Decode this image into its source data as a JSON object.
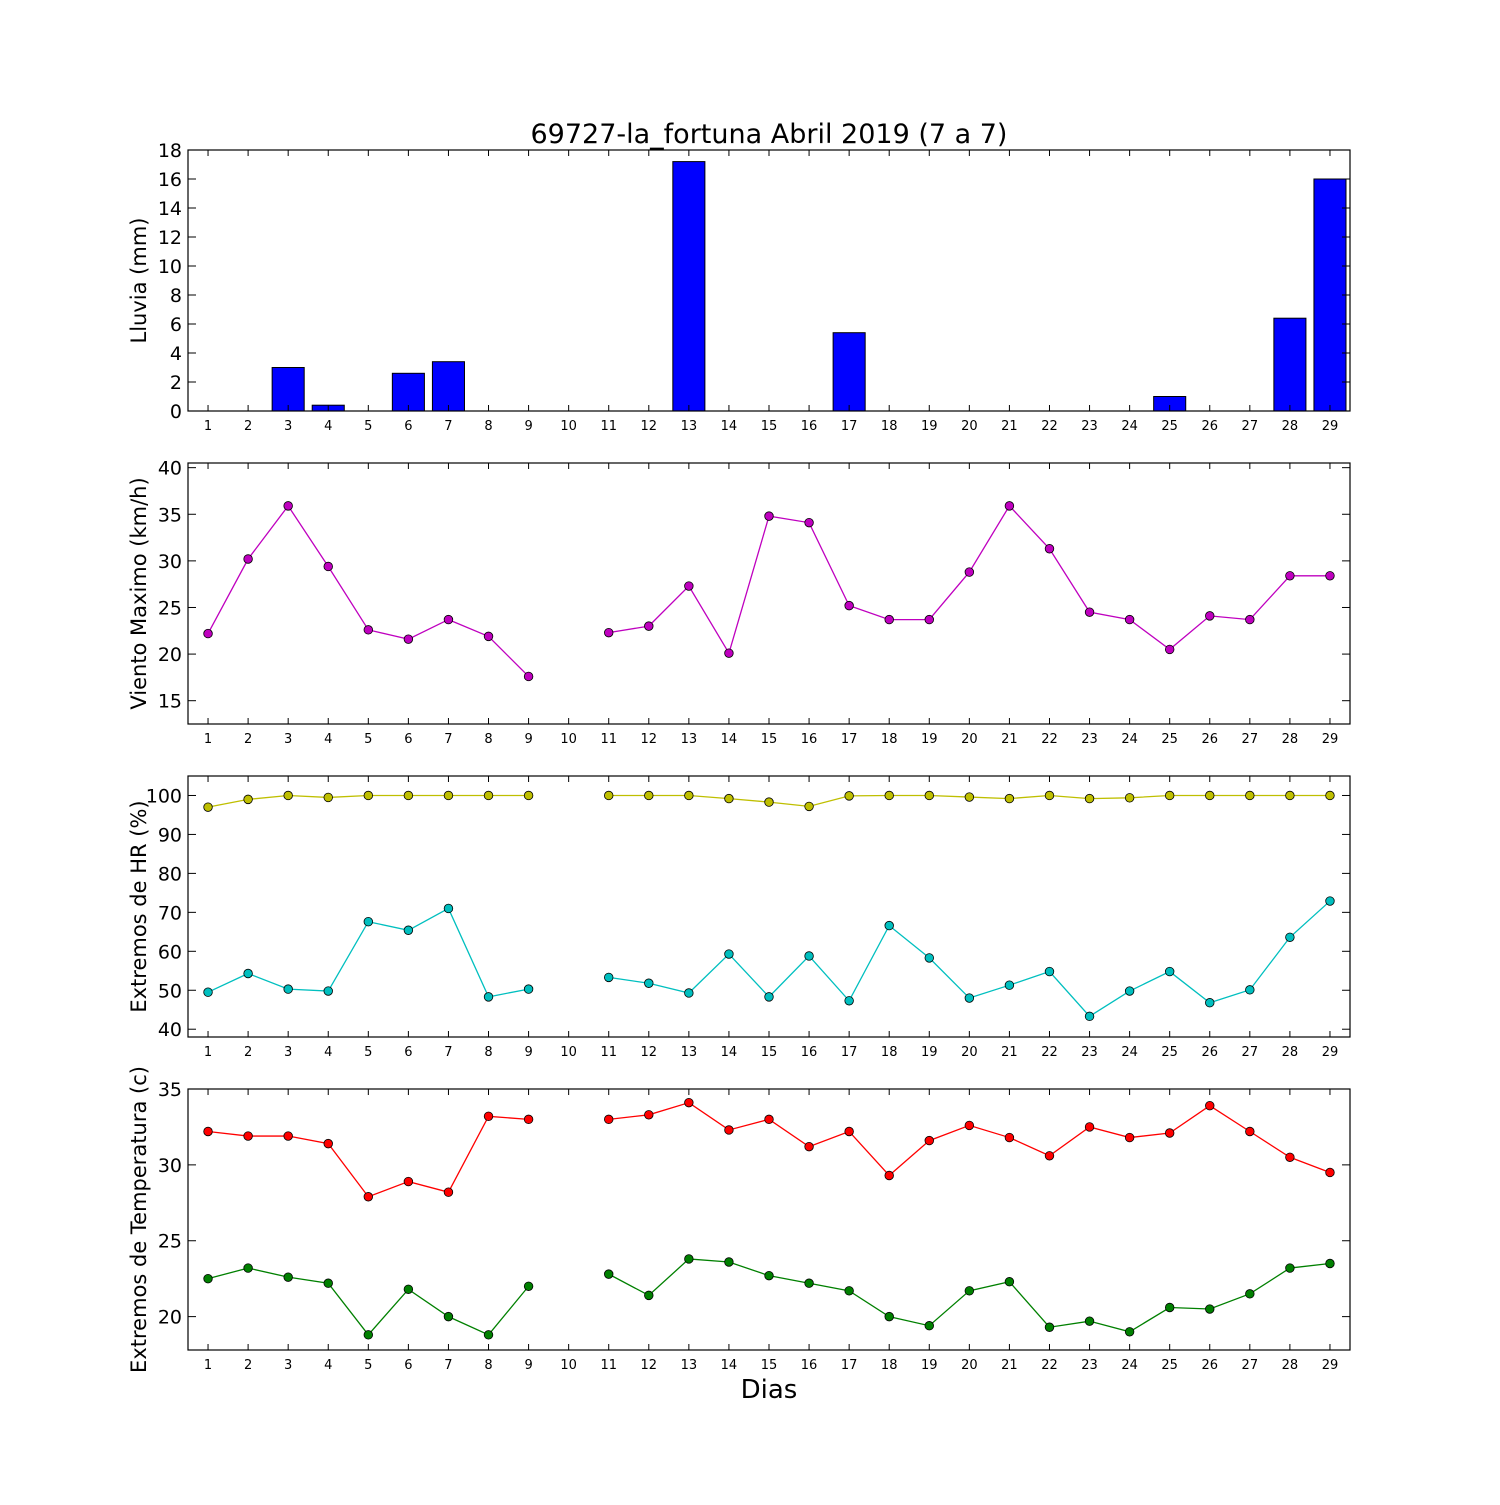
{
  "chart_data": [
    {
      "type": "bar",
      "title": "69727-la_fortuna Abril 2019  (7 a 7)",
      "xlabel": "",
      "ylabel": "Lluvia (mm)",
      "ylim": [
        0,
        18
      ],
      "yticks": [
        0,
        2,
        4,
        6,
        8,
        10,
        12,
        14,
        16,
        18
      ],
      "categories": [
        "1",
        "2",
        "3",
        "4",
        "5",
        "6",
        "7",
        "8",
        "9",
        "10",
        "11",
        "12",
        "13",
        "14",
        "15",
        "16",
        "17",
        "18",
        "19",
        "20",
        "21",
        "22",
        "23",
        "24",
        "25",
        "26",
        "27",
        "28",
        "29"
      ],
      "values": [
        0,
        0,
        3.0,
        0.4,
        0,
        2.6,
        3.4,
        0,
        0,
        0,
        0,
        0,
        17.2,
        0,
        0,
        0,
        5.4,
        0,
        0,
        0,
        0,
        0,
        0,
        0,
        1.0,
        0,
        0,
        6.4,
        16.0
      ],
      "color": "#0000ff",
      "grid": false
    },
    {
      "type": "line",
      "xlabel": "",
      "ylabel": "Viento Maximo (km/h)",
      "ylim": [
        12.5,
        40.5
      ],
      "yticks": [
        15,
        20,
        25,
        30,
        35,
        40
      ],
      "categories": [
        "1",
        "2",
        "3",
        "4",
        "5",
        "6",
        "7",
        "8",
        "9",
        "10",
        "11",
        "12",
        "13",
        "14",
        "15",
        "16",
        "17",
        "18",
        "19",
        "20",
        "21",
        "22",
        "23",
        "24",
        "25",
        "26",
        "27",
        "28",
        "29"
      ],
      "series": [
        {
          "color": "#bf00bf",
          "values": [
            22.2,
            30.2,
            35.9,
            29.4,
            22.6,
            21.6,
            23.7,
            21.9,
            17.6,
            null,
            22.3,
            23.0,
            27.3,
            20.1,
            34.8,
            34.1,
            25.2,
            23.7,
            23.7,
            28.8,
            35.9,
            31.3,
            24.5,
            23.7,
            20.5,
            24.1,
            23.7,
            28.4,
            28.4
          ]
        }
      ],
      "grid": false
    },
    {
      "type": "line",
      "xlabel": "",
      "ylabel": "Extremos de HR (%)",
      "ylim": [
        38,
        105
      ],
      "yticks": [
        40,
        50,
        60,
        70,
        80,
        90,
        100
      ],
      "categories": [
        "1",
        "2",
        "3",
        "4",
        "5",
        "6",
        "7",
        "8",
        "9",
        "10",
        "11",
        "12",
        "13",
        "14",
        "15",
        "16",
        "17",
        "18",
        "19",
        "20",
        "21",
        "22",
        "23",
        "24",
        "25",
        "26",
        "27",
        "28",
        "29"
      ],
      "series": [
        {
          "color": "#bfbf00",
          "values": [
            97,
            99,
            100,
            99.5,
            100,
            100,
            100,
            100,
            100,
            null,
            100,
            100,
            100,
            99.2,
            98.3,
            97.2,
            99.9,
            100,
            100,
            99.6,
            99.2,
            100,
            99.2,
            99.4,
            100,
            100,
            100,
            100,
            100
          ]
        },
        {
          "color": "#00bfbf",
          "values": [
            49.5,
            54.3,
            50.3,
            49.8,
            67.6,
            65.4,
            71.0,
            48.3,
            50.3,
            null,
            53.3,
            51.8,
            49.3,
            59.3,
            48.3,
            58.8,
            47.3,
            66.6,
            58.3,
            48.0,
            51.3,
            54.8,
            43.3,
            49.8,
            54.8,
            46.8,
            50.1,
            63.6,
            72.9
          ]
        }
      ],
      "grid": false
    },
    {
      "type": "line",
      "xlabel": "Dias",
      "ylabel": "Extremos de Temperatura (c)",
      "ylim": [
        17.8,
        35.0
      ],
      "yticks": [
        20,
        25,
        30,
        35
      ],
      "categories": [
        "1",
        "2",
        "3",
        "4",
        "5",
        "6",
        "7",
        "8",
        "9",
        "10",
        "11",
        "12",
        "13",
        "14",
        "15",
        "16",
        "17",
        "18",
        "19",
        "20",
        "21",
        "22",
        "23",
        "24",
        "25",
        "26",
        "27",
        "28",
        "29"
      ],
      "series": [
        {
          "color": "#ff0000",
          "values": [
            32.2,
            31.9,
            31.9,
            31.4,
            27.9,
            28.9,
            28.2,
            33.2,
            33.0,
            null,
            33.0,
            33.3,
            34.1,
            32.3,
            33.0,
            31.2,
            32.2,
            29.3,
            31.6,
            32.6,
            31.8,
            30.6,
            32.5,
            31.8,
            32.1,
            33.9,
            32.2,
            30.5,
            29.5
          ]
        },
        {
          "color": "#008000",
          "values": [
            22.5,
            23.2,
            22.6,
            22.2,
            18.8,
            21.8,
            20.0,
            18.8,
            22.0,
            null,
            22.8,
            21.4,
            23.8,
            23.6,
            22.7,
            22.2,
            21.7,
            20.0,
            19.4,
            21.7,
            22.3,
            19.3,
            19.7,
            19.0,
            20.6,
            20.5,
            21.5,
            23.2,
            23.5
          ]
        }
      ],
      "grid": false
    }
  ]
}
